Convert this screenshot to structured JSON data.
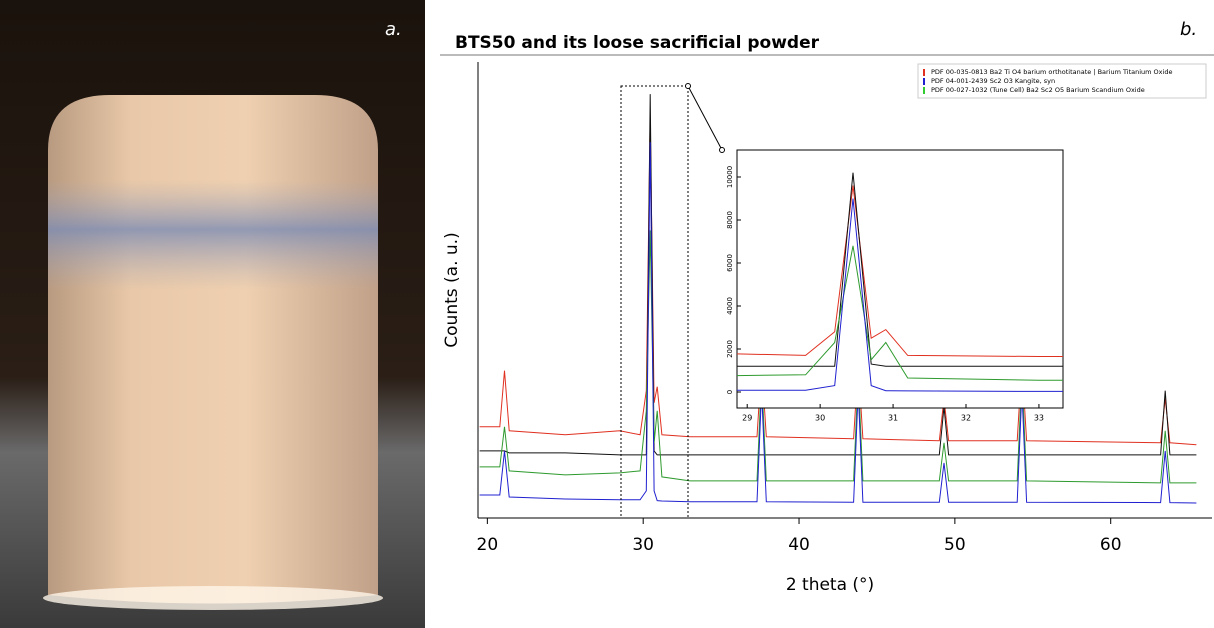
{
  "panel_labels": {
    "a": "a.",
    "b": "b."
  },
  "chart_data": {
    "type": "line",
    "title": "BTS50 and its loose sacrificial powder",
    "xlabel": "2 theta (°)",
    "ylabel": "Counts (a. u.)",
    "x": [
      19.5,
      20.8,
      21.1,
      21.4,
      25,
      28.5,
      29.8,
      30.2,
      30.45,
      30.7,
      30.9,
      31.2,
      33,
      37.3,
      37.6,
      37.9,
      43.5,
      43.8,
      44.1,
      49.0,
      49.3,
      49.6,
      54.0,
      54.3,
      54.6,
      63.2,
      63.5,
      63.8,
      65.5
    ],
    "series": [
      {
        "color": "#e03020",
        "values": [
          1900,
          1900,
          3300,
          1800,
          1700,
          1800,
          1700,
          2800,
          9600,
          2500,
          2900,
          1700,
          1650,
          1650,
          3500,
          1650,
          1600,
          3500,
          1600,
          1550,
          2600,
          1550,
          1550,
          3500,
          1550,
          1500,
          2600,
          1500,
          1450
        ]
      },
      {
        "color": "#111111",
        "values": [
          1300,
          1300,
          1300,
          1250,
          1250,
          1200,
          1200,
          1200,
          10200,
          1300,
          1200,
          1200,
          1200,
          1200,
          1200,
          1200,
          1200,
          1200,
          1200,
          1200,
          2400,
          1200,
          1200,
          1200,
          1200,
          1200,
          2800,
          1200,
          1200
        ]
      },
      {
        "color": "#2e9a2e",
        "values": [
          900,
          900,
          1900,
          800,
          700,
          750,
          800,
          2300,
          6800,
          1500,
          2300,
          650,
          550,
          550,
          3200,
          550,
          550,
          3200,
          550,
          550,
          1500,
          550,
          550,
          3200,
          550,
          500,
          1800,
          500,
          500
        ]
      },
      {
        "color": "#2020d0",
        "values": [
          200,
          200,
          1300,
          150,
          100,
          80,
          80,
          300,
          9000,
          300,
          60,
          50,
          30,
          30,
          2800,
          30,
          20,
          2800,
          20,
          20,
          1000,
          20,
          20,
          2800,
          20,
          10,
          1300,
          10,
          0
        ]
      }
    ],
    "xlim": [
      19.4,
      66.5
    ],
    "ylim": [
      -300,
      11000
    ],
    "xticks": [
      20,
      30,
      40,
      50,
      60
    ],
    "legend": [
      {
        "name": "PDF 00-035-0813 Ba2 Ti O4 barium orthotitanate | Barium Titanium Oxide",
        "color": "#e03020"
      },
      {
        "name": "PDF 04-001-2439 Sc2 O3 Kangite, syn",
        "color": "#2020d0"
      },
      {
        "name": "PDF 00-027-1032 (Tune Cell) Ba2 Sc2 O5 Barium Scandium Oxide",
        "color": "#33cc33"
      }
    ],
    "inset": {
      "xlim": [
        28.86,
        33.33
      ],
      "ylim": [
        -744,
        11255
      ],
      "xticks": [
        29,
        30,
        31,
        32,
        33
      ],
      "yticks": [
        0,
        2000,
        4000,
        6000,
        8000,
        10000
      ]
    }
  }
}
